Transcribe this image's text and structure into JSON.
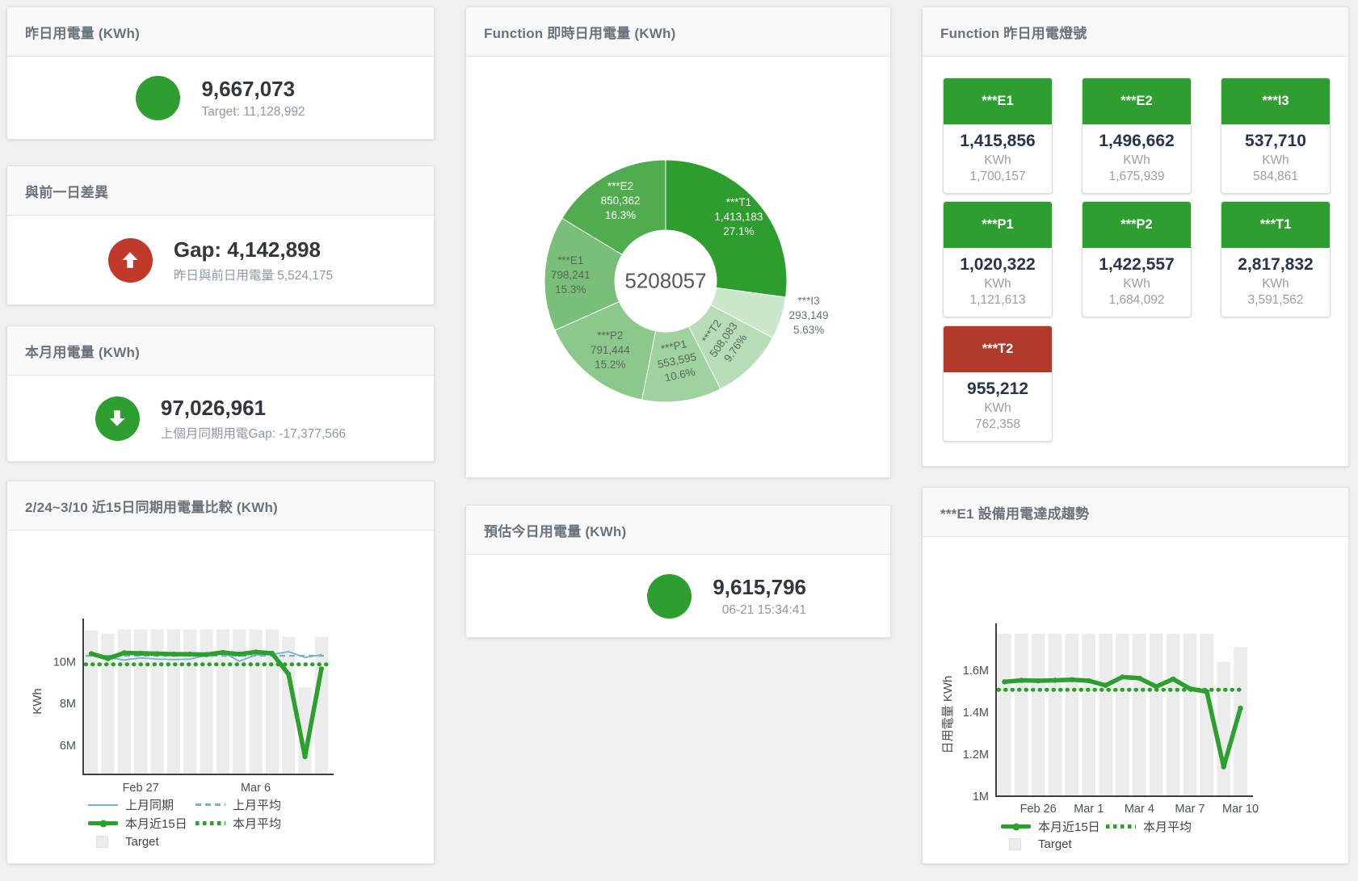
{
  "colors": {
    "green": "#2e9e30",
    "red": "#c0392b",
    "line_green": "#2ca02c",
    "line_blue": "#7aadd2",
    "target_bar": "#ececec"
  },
  "cards": {
    "yesterday": {
      "title": "昨日用電量 (KWh)",
      "value": "9,667,073",
      "subtitle": "Target: 11,128,992"
    },
    "day_gap": {
      "title": "與前一日差異",
      "value": "Gap: 4,142,898",
      "subtitle": "昨日與前日用電量 5,524,175"
    },
    "month": {
      "title": "本月用電量 (KWh)",
      "value": "97,026,961",
      "subtitle": "上個月同期用電Gap: -17,377,566"
    },
    "estimate": {
      "title": "預估今日用電量 (KWh)",
      "value": "9,615,796",
      "subtitle": "06-21 15:34:41"
    },
    "realtime_donut": {
      "title": "Function 即時日用電量 (KWh)"
    },
    "lights": {
      "title": "Function 昨日用電燈號"
    },
    "compare": {
      "title": "2/24~3/10 近15日同期用電量比較 (KWh)"
    },
    "trend": {
      "title": "***E1 設備用電達成趨勢"
    }
  },
  "lights_tiles": [
    {
      "label": "***E1",
      "value": "1,415,856",
      "unit": "KWh",
      "target": "1,700,157",
      "status_color": "#2e9e30"
    },
    {
      "label": "***E2",
      "value": "1,496,662",
      "unit": "KWh",
      "target": "1,675,939",
      "status_color": "#2e9e30"
    },
    {
      "label": "***I3",
      "value": "537,710",
      "unit": "KWh",
      "target": "584,861",
      "status_color": "#2e9e30"
    },
    {
      "label": "***P1",
      "value": "1,020,322",
      "unit": "KWh",
      "target": "1,121,613",
      "status_color": "#2e9e30"
    },
    {
      "label": "***P2",
      "value": "1,422,557",
      "unit": "KWh",
      "target": "1,684,092",
      "status_color": "#2e9e30"
    },
    {
      "label": "***T1",
      "value": "2,817,832",
      "unit": "KWh",
      "target": "3,591,562",
      "status_color": "#2e9e30"
    },
    {
      "label": "***T2",
      "value": "955,212",
      "unit": "KWh",
      "target": "762,358",
      "status_color": "#b23a2b"
    }
  ],
  "chart_data": [
    {
      "type": "pie",
      "title": "Function 即時日用電量 (KWh)",
      "center_total": "5208057",
      "slices": [
        {
          "name": "***T1",
          "value": 1413183,
          "value_label": "1,413,183",
          "pct": "27.1%",
          "color": "#2d9e2d",
          "text": "#ffffff",
          "label_r": 120
        },
        {
          "name": "***I3",
          "value": 293149,
          "value_label": "293,149",
          "pct": "5.63%",
          "color": "#cbe7cb",
          "text": "#66786b",
          "label_r": 186,
          "dy": -14
        },
        {
          "name": "***T2",
          "value": 508083,
          "value_label": "508,083",
          "pct": "9.76%",
          "color": "#b7ddb7",
          "text": "#57675c",
          "label_r": 103,
          "rotate": -55
        },
        {
          "name": "***P1",
          "value": 553595,
          "value_label": "553,595",
          "pct": "10.6%",
          "color": "#a0d2a0",
          "text": "#57675c",
          "label_r": 100,
          "rotate": -12
        },
        {
          "name": "***P2",
          "value": 791444,
          "value_label": "791,444",
          "pct": "15.2%",
          "color": "#8cc88c",
          "text": "#57675c",
          "label_r": 110
        },
        {
          "name": "***E1",
          "value": 798241,
          "value_label": "798,241",
          "pct": "15.3%",
          "color": "#79bf79",
          "text": "#57675c",
          "label_r": 118
        },
        {
          "name": "***E2",
          "value": 850362,
          "value_label": "850,362",
          "pct": "16.3%",
          "color": "#4fac4f",
          "text": "#ffffff",
          "label_r": 114
        }
      ]
    },
    {
      "type": "bar+line",
      "title": "2/24~3/10 近15日同期用電量比較 (KWh)",
      "ylabel": "KWh",
      "unit": "M",
      "ylim": [
        4.6,
        11.6
      ],
      "yticks": [
        {
          "v": 6,
          "label": "6M"
        },
        {
          "v": 8,
          "label": "8M"
        },
        {
          "v": 10,
          "label": "10M"
        }
      ],
      "xticks": [
        {
          "i": 3,
          "label": "Feb 27"
        },
        {
          "i": 10,
          "label": "Mar 6"
        }
      ],
      "bars": {
        "name": "Target",
        "color": "#ececec",
        "values": [
          11.5,
          11.35,
          11.55,
          11.55,
          11.55,
          11.55,
          11.55,
          11.55,
          11.55,
          11.55,
          11.55,
          11.55,
          11.2,
          8.77,
          11.2
        ]
      },
      "series": [
        {
          "name": "上月同期",
          "style": "thin",
          "color": "#7aadd2",
          "values": [
            10.45,
            10.2,
            10.08,
            10.18,
            10.12,
            10.1,
            10.12,
            10.3,
            10.45,
            10.02,
            10.32,
            10.35,
            10.48,
            10.2,
            10.33
          ]
        },
        {
          "name": "上月平均",
          "style": "dashed",
          "color": "#7aadd2",
          "const": 10.28
        },
        {
          "name": "本月近15日",
          "style": "thick",
          "color": "#2ca02c",
          "values": [
            10.38,
            10.15,
            10.42,
            10.4,
            10.38,
            10.36,
            10.36,
            10.34,
            10.44,
            10.36,
            10.46,
            10.4,
            9.4,
            5.45,
            9.65
          ]
        },
        {
          "name": "本月平均",
          "style": "dotted",
          "color": "#2ca02c",
          "const": 9.87
        }
      ],
      "legend": [
        [
          {
            "style": "thin",
            "color": "#7aadd2",
            "label": "上月同期"
          },
          {
            "style": "dashed",
            "color": "#7aadd2",
            "label": "上月平均"
          }
        ],
        [
          {
            "style": "thick",
            "color": "#2ca02c",
            "label": "本月近15日"
          },
          {
            "style": "dotted",
            "color": "#2ca02c",
            "label": "本月平均"
          }
        ],
        [
          {
            "style": "square",
            "color": "#ececec",
            "label": "Target"
          }
        ]
      ]
    },
    {
      "type": "bar+line",
      "title": "***E1 設備用電達成趨勢",
      "ylabel": "日用電量 KWh",
      "unit": "M",
      "ylim": [
        1.0,
        1.777
      ],
      "yticks": [
        {
          "v": 1,
          "label": "1M"
        },
        {
          "v": 1.2,
          "label": "1.2M"
        },
        {
          "v": 1.4,
          "label": "1.4M"
        },
        {
          "v": 1.6,
          "label": "1.6M"
        }
      ],
      "xticks": [
        {
          "i": 2,
          "label": "Feb 26"
        },
        {
          "i": 5,
          "label": "Mar 1"
        },
        {
          "i": 8,
          "label": "Mar 4"
        },
        {
          "i": 11,
          "label": "Mar 7"
        },
        {
          "i": 14,
          "label": "Mar 10"
        }
      ],
      "bars": {
        "name": "Target",
        "color": "#ececec",
        "values": [
          1.775,
          1.775,
          1.775,
          1.775,
          1.775,
          1.775,
          1.775,
          1.775,
          1.775,
          1.775,
          1.775,
          1.775,
          1.775,
          1.64,
          1.71
        ]
      },
      "series": [
        {
          "name": "本月近15日",
          "style": "thick",
          "color": "#2ca02c",
          "values": [
            1.545,
            1.552,
            1.55,
            1.552,
            1.555,
            1.55,
            1.528,
            1.568,
            1.562,
            1.522,
            1.558,
            1.512,
            1.498,
            1.14,
            1.42
          ]
        },
        {
          "name": "本月平均",
          "style": "dotted",
          "color": "#2ca02c",
          "const": 1.507
        }
      ],
      "legend": [
        [
          {
            "style": "thick",
            "color": "#2ca02c",
            "label": "本月近15日"
          },
          {
            "style": "dotted",
            "color": "#2ca02c",
            "label": "本月平均"
          }
        ],
        [
          {
            "style": "square",
            "color": "#ececec",
            "label": "Target"
          }
        ]
      ]
    }
  ]
}
